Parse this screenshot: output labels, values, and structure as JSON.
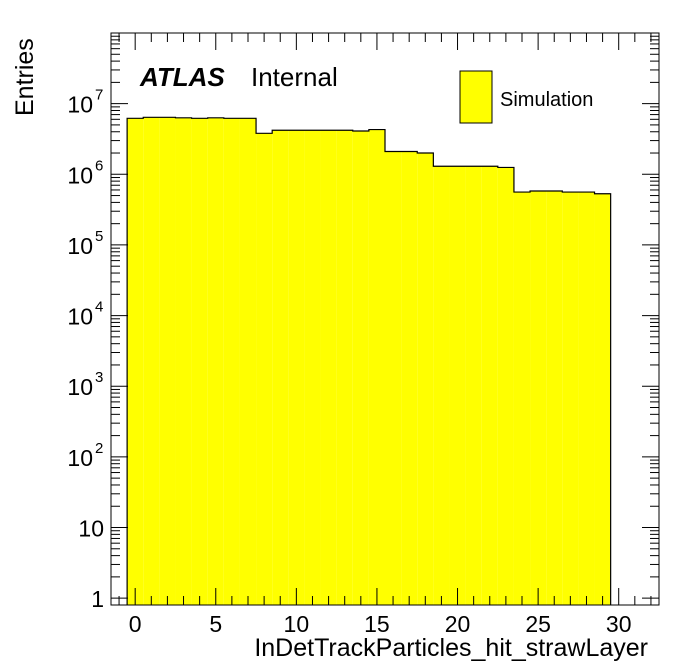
{
  "chart_data": {
    "type": "bar",
    "style": "histogram",
    "log_y": true,
    "xlabel": "InDetTrackParticles_hit_strawLayer",
    "ylabel": "Entries",
    "xlim": [
      -1.5,
      32.5
    ],
    "ylim": [
      0.8,
      100000000.0
    ],
    "x_ticks": [
      0,
      5,
      10,
      15,
      20,
      25,
      30
    ],
    "y_ticks": [
      {
        "value": 1,
        "base": "1",
        "exp": ""
      },
      {
        "value": 10,
        "base": "10",
        "exp": ""
      },
      {
        "value": 100,
        "base": "10",
        "exp": "2"
      },
      {
        "value": 1000,
        "base": "10",
        "exp": "3"
      },
      {
        "value": 10000,
        "base": "10",
        "exp": "4"
      },
      {
        "value": 100000,
        "base": "10",
        "exp": "5"
      },
      {
        "value": 1000000,
        "base": "10",
        "exp": "6"
      },
      {
        "value": 10000000,
        "base": "10",
        "exp": "7"
      }
    ],
    "bin_edges": [
      -0.5,
      0.5,
      1.5,
      2.5,
      3.5,
      4.5,
      5.5,
      6.5,
      7.5,
      8.5,
      9.5,
      10.5,
      11.5,
      12.5,
      13.5,
      14.5,
      15.5,
      16.5,
      17.5,
      18.5,
      19.5,
      20.5,
      21.5,
      22.5,
      23.5,
      24.5,
      25.5,
      26.5,
      27.5,
      28.5,
      29.5
    ],
    "series": [
      {
        "name": "Simulation",
        "color": "#ffff00",
        "values": [
          6200000,
          6400000,
          6400000,
          6300000,
          6200000,
          6300000,
          6200000,
          6200000,
          3800000,
          4200000,
          4200000,
          4200000,
          4200000,
          4200000,
          4100000,
          4300000,
          2100000,
          2100000,
          2000000,
          1300000,
          1300000,
          1300000,
          1300000,
          1250000,
          560000,
          580000,
          580000,
          560000,
          560000,
          530000
        ]
      }
    ],
    "legend": {
      "position": "top-right",
      "entries": [
        "Simulation"
      ]
    },
    "labels": {
      "experiment": "ATLAS",
      "status": "Internal"
    }
  }
}
